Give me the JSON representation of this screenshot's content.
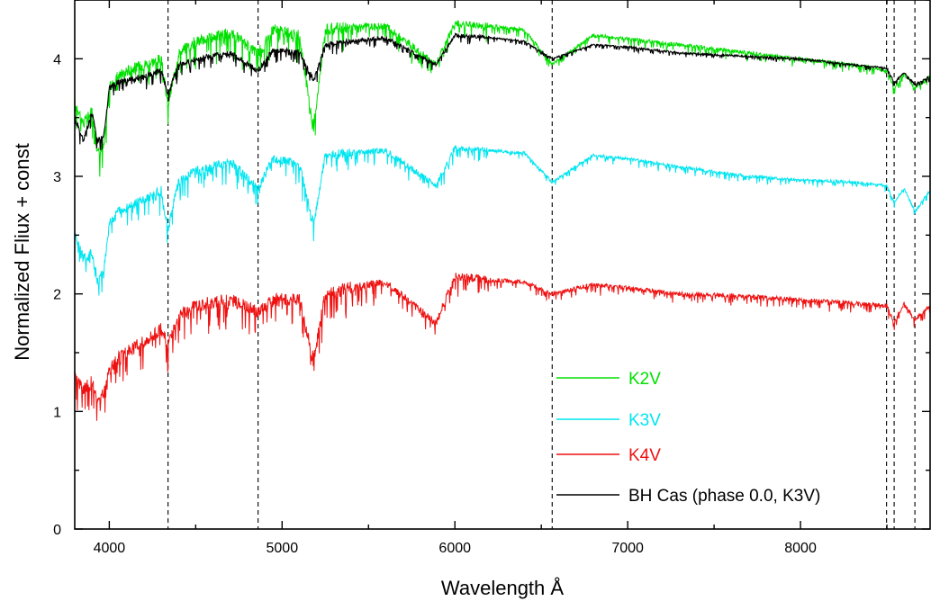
{
  "chart_data": {
    "type": "line",
    "title": "",
    "xlabel": "Wavelength Å",
    "ylabel": "Normalized Fliux + const",
    "xlim": [
      3800,
      8750
    ],
    "ylim": [
      0,
      4.5
    ],
    "xticks": [
      "4000",
      "5000",
      "6000",
      "7000",
      "8000"
    ],
    "yticks": [
      "0",
      "1",
      "2",
      "3",
      "4"
    ],
    "vlines": [
      4340,
      4861,
      6563,
      8498,
      8542,
      8662
    ],
    "legend_position": "bottom-right",
    "series": [
      {
        "name": "K2V",
        "color": "#00e000",
        "offset": 2.0,
        "noise": 0.06,
        "x": [
          3800,
          3850,
          3900,
          3933,
          3968,
          4000,
          4050,
          4100,
          4200,
          4300,
          4340,
          4400,
          4500,
          4700,
          4861,
          4950,
          5100,
          5170,
          5184,
          5250,
          5400,
          5600,
          5890,
          6000,
          6200,
          6400,
          6563,
          6800,
          7000,
          7300,
          7700,
          8000,
          8300,
          8500,
          8542,
          8600,
          8662,
          8750
        ],
        "y": [
          3.65,
          3.45,
          3.55,
          3.2,
          3.25,
          3.75,
          3.85,
          3.9,
          3.95,
          4.0,
          3.6,
          4.05,
          4.15,
          4.22,
          4.05,
          4.25,
          4.2,
          3.5,
          3.45,
          4.25,
          4.27,
          4.28,
          3.95,
          4.3,
          4.28,
          4.25,
          3.95,
          4.2,
          4.17,
          4.12,
          4.05,
          4.0,
          3.95,
          3.9,
          3.75,
          3.88,
          3.75,
          3.85
        ]
      },
      {
        "name": "K3V",
        "color": "#00e5f0",
        "offset": 1.0,
        "noise": 0.05,
        "x": [
          3800,
          3850,
          3900,
          3933,
          3968,
          4000,
          4050,
          4100,
          4200,
          4300,
          4340,
          4400,
          4500,
          4700,
          4861,
          4950,
          5100,
          5170,
          5184,
          5250,
          5400,
          5600,
          5890,
          6000,
          6200,
          6400,
          6563,
          6800,
          7000,
          7300,
          7700,
          8000,
          8300,
          8500,
          8542,
          8600,
          8662,
          8750
        ],
        "y": [
          2.5,
          2.3,
          2.35,
          2.1,
          2.2,
          2.6,
          2.7,
          2.75,
          2.8,
          2.88,
          2.55,
          2.95,
          3.05,
          3.12,
          2.9,
          3.15,
          3.1,
          2.65,
          2.6,
          3.18,
          3.2,
          3.22,
          2.92,
          3.24,
          3.22,
          3.2,
          2.95,
          3.18,
          3.15,
          3.08,
          3.0,
          2.97,
          2.95,
          2.92,
          2.78,
          2.9,
          2.7,
          2.88
        ]
      },
      {
        "name": "K4V",
        "color": "#ee1111",
        "offset": 0.0,
        "noise": 0.07,
        "x": [
          3800,
          3850,
          3900,
          3933,
          3968,
          4000,
          4050,
          4100,
          4200,
          4300,
          4340,
          4400,
          4500,
          4700,
          4861,
          4950,
          5100,
          5170,
          5184,
          5250,
          5400,
          5600,
          5890,
          6000,
          6200,
          6400,
          6563,
          6800,
          7000,
          7300,
          7700,
          8000,
          8300,
          8500,
          8542,
          8600,
          8662,
          8750
        ],
        "y": [
          1.3,
          1.2,
          1.25,
          1.1,
          1.15,
          1.35,
          1.45,
          1.5,
          1.6,
          1.7,
          1.55,
          1.8,
          1.9,
          1.95,
          1.85,
          1.95,
          1.95,
          1.5,
          1.45,
          2.0,
          2.05,
          2.1,
          1.75,
          2.15,
          2.12,
          2.1,
          2.0,
          2.08,
          2.05,
          2.0,
          1.98,
          1.95,
          1.92,
          1.9,
          1.75,
          1.92,
          1.78,
          1.9
        ]
      },
      {
        "name": "BH Cas (phase 0.0, K3V)",
        "color": "#000000",
        "offset": 2.0,
        "noise": 0.03,
        "x": [
          3800,
          3850,
          3900,
          3933,
          3968,
          4000,
          4050,
          4100,
          4200,
          4300,
          4340,
          4400,
          4500,
          4700,
          4861,
          4950,
          5100,
          5170,
          5184,
          5250,
          5400,
          5600,
          5890,
          6000,
          6200,
          6400,
          6563,
          6800,
          7000,
          7300,
          7700,
          8000,
          8300,
          8500,
          8542,
          8600,
          8662,
          8750
        ],
        "y": [
          3.5,
          3.3,
          3.55,
          3.3,
          3.35,
          3.75,
          3.8,
          3.82,
          3.85,
          3.9,
          3.7,
          3.95,
          4.0,
          4.05,
          3.9,
          4.08,
          4.05,
          3.85,
          3.82,
          4.12,
          4.15,
          4.18,
          3.95,
          4.2,
          4.18,
          4.15,
          4.0,
          4.12,
          4.1,
          4.05,
          4.02,
          4.0,
          3.95,
          3.92,
          3.8,
          3.88,
          3.78,
          3.85
        ]
      }
    ]
  }
}
